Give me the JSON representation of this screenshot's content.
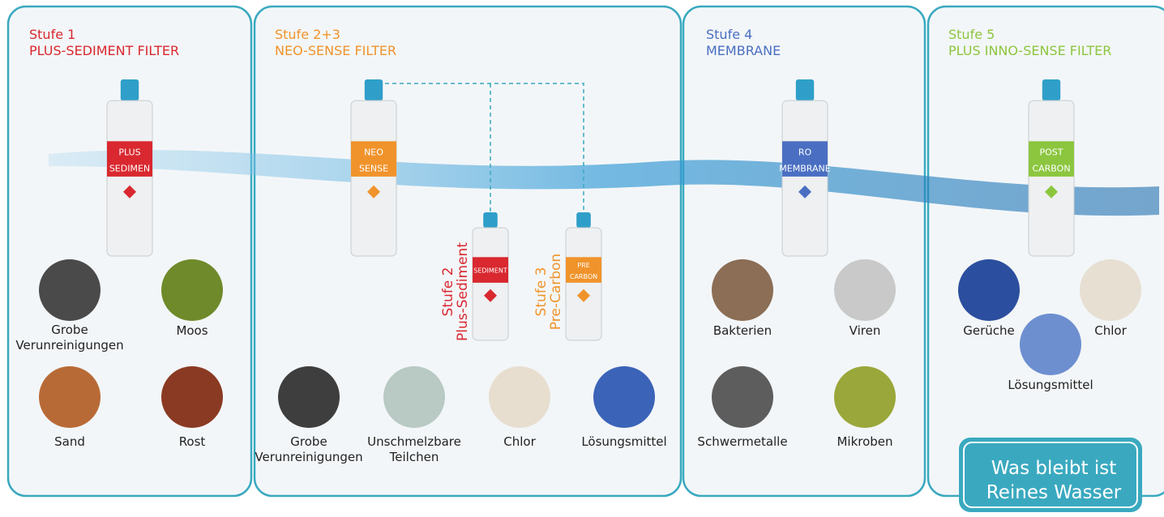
{
  "stages": [
    {
      "title": "Stufe 1",
      "name": "PLUS-SEDIMENT FILTER",
      "cartridge": [
        "PLUS",
        "SEDIMEN"
      ],
      "items": [
        [
          "Grobe",
          "Verunreinigungen"
        ],
        [
          "Moos"
        ],
        [
          "Sand"
        ],
        [
          "Rost"
        ]
      ]
    },
    {
      "title": "Stufe 2+3",
      "name": "NEO-SENSE FILTER",
      "cartridge": [
        "NEO",
        "SENSE"
      ],
      "items": [
        [
          "Grobe",
          "Verunreinigungen"
        ],
        [
          "Unschmelzbare",
          "Teilchen"
        ],
        [
          "Chlor"
        ],
        [
          "Lösungsmittel"
        ]
      ]
    },
    {
      "title": "Stufe 4",
      "name": "MEMBRANE",
      "cartridge": [
        "RO",
        "MEMBRANE"
      ],
      "items": [
        [
          "Bakterien"
        ],
        [
          "Viren"
        ],
        [
          "Schwermetalle"
        ],
        [
          "Mikroben"
        ]
      ]
    },
    {
      "title": "Stufe 5",
      "name": "PLUS INNO-SENSE FILTER",
      "cartridge": [
        "POST",
        "CARBON"
      ],
      "items": [
        [
          "Gerüche"
        ],
        [
          "Chlor"
        ],
        [
          "Lösungsmittel"
        ]
      ]
    }
  ],
  "substages": [
    {
      "title": "Stufe 2",
      "name": "Plus-Sediment",
      "cartridge": [
        "SEDIMENT"
      ]
    },
    {
      "title": "Stufe 3",
      "name": "Pre-Carbon",
      "cartridge": [
        "PRE",
        "CARBON"
      ]
    }
  ],
  "result": [
    "Was bleibt ist",
    "Reines Wasser"
  ]
}
